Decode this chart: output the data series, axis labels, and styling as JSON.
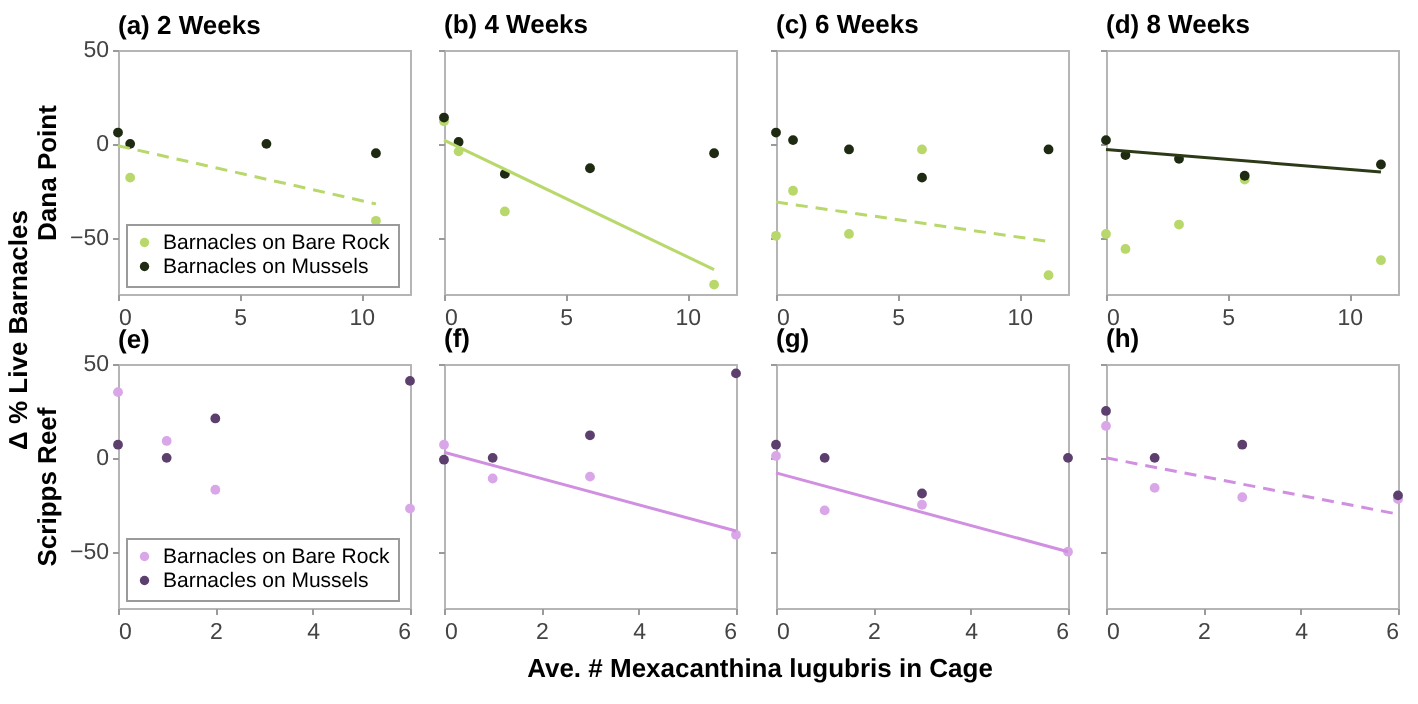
{
  "chart_data": [
    {
      "type": "scatter",
      "title": "(a) 2 Weeks",
      "ylabel": "Dana Point",
      "xlim": [
        0,
        12
      ],
      "xticks": [
        0,
        5,
        10
      ],
      "ylim": [
        -80,
        50
      ],
      "yticks": [
        -50,
        0,
        50
      ],
      "legend": "bottom left",
      "marker": "circle",
      "annotations": [
        "Δ % Live Barnacles",
        "Ave. # Mexacanthina lugubris in Cage"
      ],
      "series": [
        {
          "name": "Barnacles on Bare Rock",
          "color": "#b8d86b",
          "x": [
            0.5,
            10.6
          ],
          "values": [
            -18,
            -41
          ]
        },
        {
          "name": "Barnacles on Mussels",
          "color": "#1f2a12",
          "x": [
            0,
            0.5,
            6.1,
            10.6
          ],
          "values": [
            6,
            0,
            0,
            -5
          ]
        },
        {
          "type": "line",
          "marker": "none",
          "line_style": "dashed",
          "color": "#b8d86b",
          "x": [
            0,
            10.6
          ],
          "values": [
            -1,
            -32
          ]
        }
      ]
    },
    {
      "type": "scatter",
      "title": "(b) 4 Weeks",
      "xlim": [
        0,
        12
      ],
      "xticks": [
        0,
        5,
        10
      ],
      "ylim": [
        -80,
        50
      ],
      "yticks": [
        -50,
        0,
        50
      ],
      "tick_labels": "x",
      "marker": "circle",
      "series": [
        {
          "color": "#b8d86b",
          "x": [
            0,
            0.6,
            2.5,
            11.1
          ],
          "values": [
            12,
            -4,
            -36,
            -75
          ]
        },
        {
          "color": "#1f2a12",
          "x": [
            0,
            0.6,
            2.5,
            6,
            11.1
          ],
          "values": [
            14,
            1,
            -16,
            -13,
            -5
          ]
        },
        {
          "type": "line",
          "marker": "none",
          "line_style": "solid",
          "color": "#b8d86b",
          "x": [
            0,
            11.1
          ],
          "values": [
            2,
            -67
          ]
        }
      ]
    },
    {
      "type": "scatter",
      "title": "(c) 6 Weeks",
      "xlim": [
        0,
        12
      ],
      "xticks": [
        0,
        5,
        10
      ],
      "ylim": [
        -80,
        50
      ],
      "yticks": [
        -50,
        0,
        50
      ],
      "tick_labels": "x",
      "marker": "circle",
      "series": [
        {
          "color": "#b8d86b",
          "x": [
            0,
            0.7,
            3,
            6,
            11.2
          ],
          "values": [
            -49,
            -25,
            -48,
            -3,
            -70
          ]
        },
        {
          "color": "#1f2a12",
          "x": [
            0,
            0.7,
            3,
            6,
            11.2
          ],
          "values": [
            6,
            2,
            -3,
            -18,
            -3
          ]
        },
        {
          "type": "line",
          "marker": "none",
          "line_style": "dashed",
          "color": "#b8d86b",
          "x": [
            0,
            11.2
          ],
          "values": [
            -31,
            -52
          ]
        }
      ]
    },
    {
      "type": "scatter",
      "title": "(d) 8 Weeks",
      "xlim": [
        0,
        12
      ],
      "xticks": [
        0,
        5,
        10
      ],
      "ylim": [
        -80,
        50
      ],
      "yticks": [
        -50,
        0,
        50
      ],
      "tick_labels": "x",
      "marker": "circle",
      "series": [
        {
          "color": "#b8d86b",
          "x": [
            0,
            0.8,
            3,
            5.7,
            11.3
          ],
          "values": [
            -48,
            -56,
            -43,
            -19,
            -62
          ]
        },
        {
          "color": "#1f2a12",
          "x": [
            0,
            0.8,
            3,
            5.7,
            11.3
          ],
          "values": [
            2,
            -6,
            -8,
            -17,
            -11
          ]
        },
        {
          "type": "line",
          "marker": "none",
          "line_style": "solid",
          "color": "#2d3a18",
          "x": [
            0,
            11.3
          ],
          "values": [
            -3,
            -15
          ]
        }
      ]
    },
    {
      "type": "scatter",
      "title": "(e)",
      "ylabel": "Scripps Reef",
      "xlim": [
        0,
        6
      ],
      "xticks": [
        0,
        2,
        4,
        6
      ],
      "ylim": [
        -80,
        50
      ],
      "yticks": [
        -50,
        0,
        50
      ],
      "legend": "bottom left",
      "marker": "circle",
      "series": [
        {
          "name": "Barnacles on Bare Rock",
          "color": "#d9a6e8",
          "x": [
            0,
            1,
            2,
            6
          ],
          "values": [
            35,
            9,
            -17,
            -27
          ]
        },
        {
          "name": "Barnacles on Mussels",
          "color": "#5d3f6e",
          "x": [
            0,
            1,
            2,
            6
          ],
          "values": [
            7,
            0,
            21,
            41
          ]
        }
      ]
    },
    {
      "type": "scatter",
      "title": "(f)",
      "xlim": [
        0,
        6
      ],
      "xticks": [
        0,
        2,
        4,
        6
      ],
      "ylim": [
        -80,
        50
      ],
      "yticks": [
        -50,
        0,
        50
      ],
      "tick_labels": "x",
      "marker": "circle",
      "series": [
        {
          "color": "#d9a6e8",
          "x": [
            0,
            1,
            3,
            6
          ],
          "values": [
            7,
            -11,
            -10,
            -41
          ]
        },
        {
          "color": "#5d3f6e",
          "x": [
            0,
            1,
            3,
            6
          ],
          "values": [
            -1,
            0,
            12,
            45
          ]
        },
        {
          "type": "line",
          "marker": "none",
          "line_style": "solid",
          "color": "#d08fe0",
          "x": [
            0,
            6
          ],
          "values": [
            3,
            -39
          ]
        }
      ]
    },
    {
      "type": "scatter",
      "title": "(g)",
      "xlim": [
        0,
        6
      ],
      "xticks": [
        0,
        2,
        4,
        6
      ],
      "ylim": [
        -80,
        50
      ],
      "yticks": [
        -50,
        0,
        50
      ],
      "tick_labels": "x",
      "marker": "circle",
      "series": [
        {
          "color": "#d9a6e8",
          "x": [
            0,
            1,
            3,
            6
          ],
          "values": [
            1,
            -28,
            -25,
            -50
          ]
        },
        {
          "color": "#5d3f6e",
          "x": [
            0,
            1,
            3,
            6
          ],
          "values": [
            7,
            0,
            -19,
            0
          ]
        },
        {
          "type": "line",
          "marker": "none",
          "line_style": "solid",
          "color": "#d08fe0",
          "x": [
            0,
            6
          ],
          "values": [
            -8,
            -50
          ]
        }
      ]
    },
    {
      "type": "scatter",
      "title": "(h)",
      "xlim": [
        0,
        6
      ],
      "xticks": [
        0,
        2,
        4,
        6
      ],
      "ylim": [
        -80,
        50
      ],
      "yticks": [
        -50,
        0,
        50
      ],
      "tick_labels": "x",
      "marker": "circle",
      "series": [
        {
          "color": "#d9a6e8",
          "x": [
            0,
            1,
            2.8,
            6
          ],
          "values": [
            17,
            -16,
            -21,
            -22
          ]
        },
        {
          "color": "#5d3f6e",
          "x": [
            0,
            1,
            2.8,
            6
          ],
          "values": [
            25,
            0,
            7,
            -20
          ]
        },
        {
          "type": "line",
          "marker": "none",
          "line_style": "dashed",
          "color": "#d08fe0",
          "x": [
            0,
            6
          ],
          "values": [
            0,
            -30
          ]
        }
      ]
    }
  ]
}
